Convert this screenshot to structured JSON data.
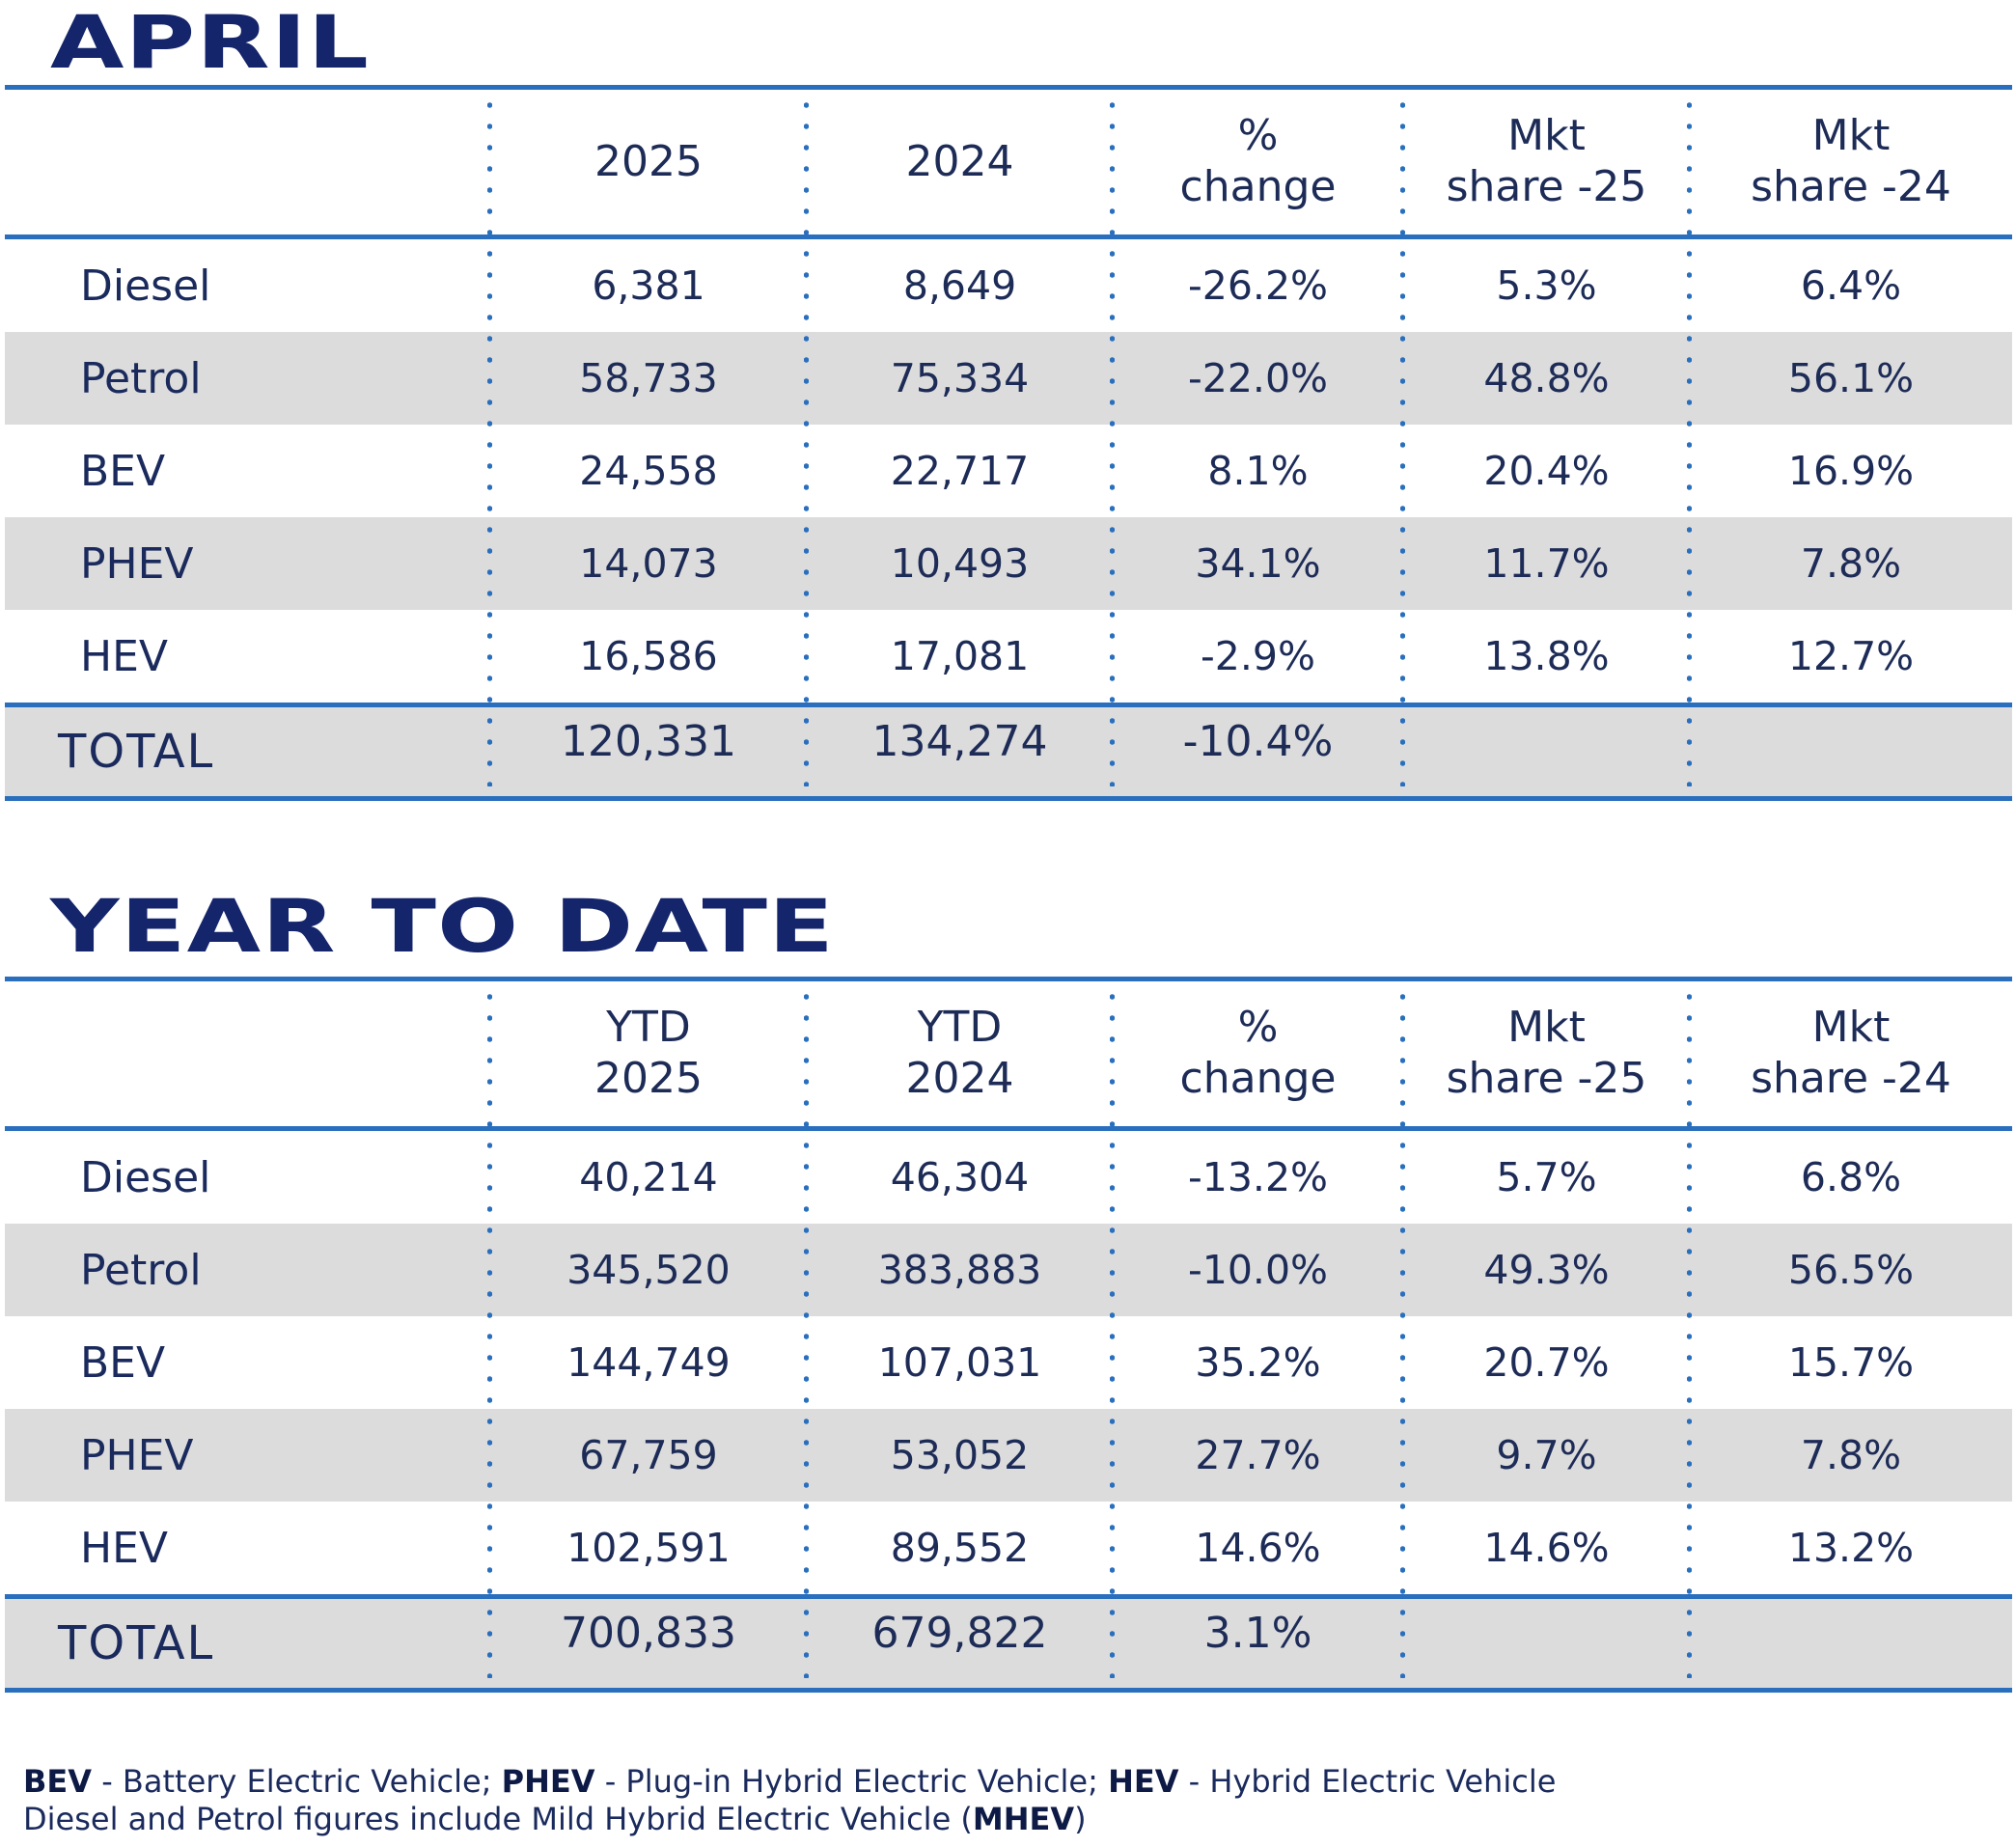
{
  "april": {
    "title": "APRIL",
    "headers": [
      "",
      "2025",
      "2024",
      "% change",
      "Mkt share -25",
      "Mkt share -24"
    ],
    "rows": [
      {
        "label": "Diesel",
        "cells": [
          "6,381",
          "8,649",
          "-26.2%",
          "5.3%",
          "6.4%"
        ]
      },
      {
        "label": "Petrol",
        "cells": [
          "58,733",
          "75,334",
          "-22.0%",
          "48.8%",
          "56.1%"
        ]
      },
      {
        "label": "BEV",
        "cells": [
          "24,558",
          "22,717",
          "8.1%",
          "20.4%",
          "16.9%"
        ]
      },
      {
        "label": "PHEV",
        "cells": [
          "14,073",
          "10,493",
          "34.1%",
          "11.7%",
          "7.8%"
        ]
      },
      {
        "label": "HEV",
        "cells": [
          "16,586",
          "17,081",
          "-2.9%",
          "13.8%",
          "12.7%"
        ]
      }
    ],
    "total": {
      "label": "TOTAL",
      "cells": [
        "120,331",
        "134,274",
        "-10.4%",
        "",
        ""
      ]
    }
  },
  "ytd": {
    "title": "YEAR TO DATE",
    "headers": [
      "",
      "YTD 2025",
      "YTD 2024",
      "% change",
      "Mkt share -25",
      "Mkt share -24"
    ],
    "rows": [
      {
        "label": "Diesel",
        "cells": [
          "40,214",
          "46,304",
          "-13.2%",
          "5.7%",
          "6.8%"
        ]
      },
      {
        "label": "Petrol",
        "cells": [
          "345,520",
          "383,883",
          "-10.0%",
          "49.3%",
          "56.5%"
        ]
      },
      {
        "label": "BEV",
        "cells": [
          "144,749",
          "107,031",
          "35.2%",
          "20.7%",
          "15.7%"
        ]
      },
      {
        "label": "PHEV",
        "cells": [
          "67,759",
          "53,052",
          "27.7%",
          "9.7%",
          "7.8%"
        ]
      },
      {
        "label": "HEV",
        "cells": [
          "102,591",
          "89,552",
          "14.6%",
          "14.6%",
          "13.2%"
        ]
      }
    ],
    "total": {
      "label": "TOTAL",
      "cells": [
        "700,833",
        "679,822",
        "3.1%",
        "",
        ""
      ]
    }
  },
  "footnote": {
    "bev_abbr": "BEV",
    "bev_def": " - Battery Electric Vehicle; ",
    "phev_abbr": "PHEV",
    "phev_def": " - Plug-in Hybrid Electric Vehicle; ",
    "hev_abbr": "HEV",
    "hev_def": " - Hybrid Electric Vehicle",
    "line2_text": "Diesel and Petrol figures include Mild Hybrid Electric Vehicle (",
    "mhev_abbr": "MHEV",
    "line2_end": ")"
  }
}
